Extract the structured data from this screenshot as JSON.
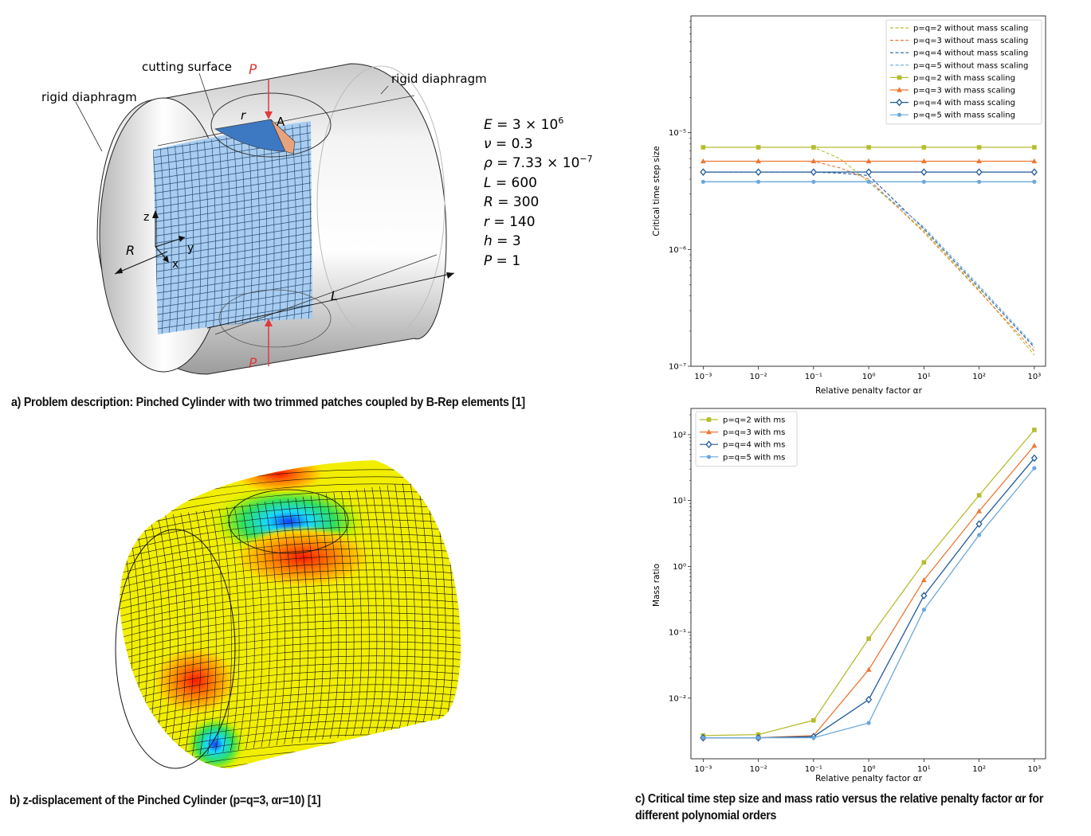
{
  "panel_a": {
    "caption": "a) Problem description: Pinched Cylinder with two trimmed patches coupled by B-Rep elements [1]",
    "labels": {
      "cutting_surface": "cutting surface",
      "rigid_left": "rigid diaphragm",
      "rigid_right": "rigid diaphragm",
      "load_top": "P",
      "load_bottom": "P",
      "point": "A",
      "small_r": "r",
      "big_r": "R",
      "length": "L",
      "axis_x": "x",
      "axis_y": "y",
      "axis_z": "z"
    },
    "parameters": [
      {
        "name": "E",
        "value": "3 × 10",
        "sup": "6"
      },
      {
        "name": "ν",
        "value": "0.3"
      },
      {
        "name": "ρ",
        "value": "7.33 × 10",
        "sup": "−7"
      },
      {
        "name": "L",
        "value": "600"
      },
      {
        "name": "R",
        "value": "300"
      },
      {
        "name": "r",
        "value": "140"
      },
      {
        "name": "h",
        "value": "3"
      },
      {
        "name": "P",
        "value": "1"
      }
    ]
  },
  "panel_b": {
    "caption": "b) z-displacement of the Pinched Cylinder (p=q=3, αr=10) [1]"
  },
  "panel_c": {
    "caption_line1": "c) Critical time step size and mass ratio versus the relative penalty factor αr for",
    "caption_line2": "different polynomial orders"
  },
  "chart_data": [
    {
      "type": "line",
      "xlabel": "Relative penalty factor αr",
      "ylabel": "Critical time step size",
      "xscale": "log",
      "yscale": "log",
      "xlim": [
        0.0006,
        1600
      ],
      "ylim": [
        1e-07,
        0.0001
      ],
      "x_ticks": [
        "10⁻³",
        "10⁻²",
        "10⁻¹",
        "10⁰",
        "10¹",
        "10²",
        "10³"
      ],
      "y_ticks": [
        "10⁻⁷",
        "10⁻⁶",
        "10⁻⁵"
      ],
      "legend_position": "top-right",
      "x": [
        0.001,
        0.01,
        0.1,
        1,
        10,
        100,
        1000
      ],
      "series": [
        {
          "name": "p=q=2 without mass scaling",
          "style": "dashed",
          "color": "#b5bd2e",
          "marker": "none",
          "x": [
            0.001,
            0.01,
            0.1,
            0.3,
            1,
            10,
            100,
            1000
          ],
          "values": [
            7.5e-06,
            7.5e-06,
            7.5e-06,
            6e-06,
            3.8e-06,
            1.45e-06,
            4.5e-07,
            1.25e-07
          ]
        },
        {
          "name": "p=q=3 without mass scaling",
          "style": "dashed",
          "color": "#ee7733",
          "marker": "none",
          "x": [
            0.001,
            0.01,
            0.1,
            0.3,
            1,
            10,
            100,
            1000
          ],
          "values": [
            5.7e-06,
            5.7e-06,
            5.7e-06,
            5e-06,
            4e-06,
            1.4e-06,
            4.4e-07,
            1.35e-07
          ]
        },
        {
          "name": "p=q=4 without mass scaling",
          "style": "dashed",
          "color": "#1f5a9a",
          "marker": "none",
          "x": [
            0.001,
            0.01,
            0.1,
            0.3,
            1,
            10,
            100,
            1000
          ],
          "values": [
            4.6e-06,
            4.6e-06,
            4.6e-06,
            4.5e-06,
            4.3e-06,
            1.5e-06,
            4.7e-07,
            1.45e-07
          ]
        },
        {
          "name": "p=q=5 without mass scaling",
          "style": "dashed",
          "color": "#6aa8db",
          "marker": "none",
          "x": [
            0.001,
            0.01,
            0.1,
            0.3,
            1,
            10,
            100,
            1000
          ],
          "values": [
            3.8e-06,
            3.8e-06,
            3.8e-06,
            3.8e-06,
            3.8e-06,
            1.55e-06,
            4.9e-07,
            1.5e-07
          ]
        },
        {
          "name": "p=q=2 with mass scaling",
          "style": "solid",
          "color": "#b5bd2e",
          "marker": "square",
          "values": [
            7.5e-06,
            7.5e-06,
            7.5e-06,
            7.5e-06,
            7.5e-06,
            7.5e-06,
            7.5e-06
          ]
        },
        {
          "name": "p=q=3 with mass scaling",
          "style": "solid",
          "color": "#ee7733",
          "marker": "triangle",
          "values": [
            5.7e-06,
            5.7e-06,
            5.7e-06,
            5.7e-06,
            5.7e-06,
            5.7e-06,
            5.7e-06
          ]
        },
        {
          "name": "p=q=4 with mass scaling",
          "style": "solid",
          "color": "#1f5a9a",
          "marker": "diamond",
          "values": [
            4.6e-06,
            4.6e-06,
            4.6e-06,
            4.6e-06,
            4.6e-06,
            4.6e-06,
            4.6e-06
          ]
        },
        {
          "name": "p=q=5 with mass scaling",
          "style": "solid",
          "color": "#6aa8db",
          "marker": "circle",
          "values": [
            3.8e-06,
            3.8e-06,
            3.8e-06,
            3.8e-06,
            3.8e-06,
            3.8e-06,
            3.8e-06
          ]
        }
      ]
    },
    {
      "type": "line",
      "xlabel": "Relative penalty factor αr",
      "ylabel": "Mass ratio",
      "xscale": "log",
      "yscale": "log",
      "xlim": [
        0.0006,
        1600
      ],
      "ylim": [
        0.0012,
        250
      ],
      "x_ticks": [
        "10⁻³",
        "10⁻²",
        "10⁻¹",
        "10⁰",
        "10¹",
        "10²",
        "10³"
      ],
      "y_ticks": [
        "10⁻²",
        "10⁻¹",
        "10⁰",
        "10¹",
        "10²"
      ],
      "legend_position": "top-left",
      "x": [
        0.001,
        0.01,
        0.1,
        1,
        10,
        100,
        1000
      ],
      "series": [
        {
          "name": "p=q=2 with ms",
          "color": "#b5bd2e",
          "marker": "square",
          "values": [
            0.0027,
            0.0028,
            0.0046,
            0.08,
            1.15,
            12.0,
            118.0
          ]
        },
        {
          "name": "p=q=3 with ms",
          "color": "#ee7733",
          "marker": "triangle",
          "values": [
            0.0025,
            0.0025,
            0.0027,
            0.027,
            0.62,
            6.9,
            68.0
          ]
        },
        {
          "name": "p=q=4 with ms",
          "color": "#1f5a9a",
          "marker": "diamond",
          "values": [
            0.0025,
            0.0025,
            0.0026,
            0.0095,
            0.36,
            4.4,
            44.0
          ]
        },
        {
          "name": "p=q=5 with ms",
          "color": "#6aa8db",
          "marker": "circle",
          "values": [
            0.0025,
            0.0025,
            0.0025,
            0.0042,
            0.22,
            3.0,
            31.0
          ]
        }
      ]
    }
  ]
}
